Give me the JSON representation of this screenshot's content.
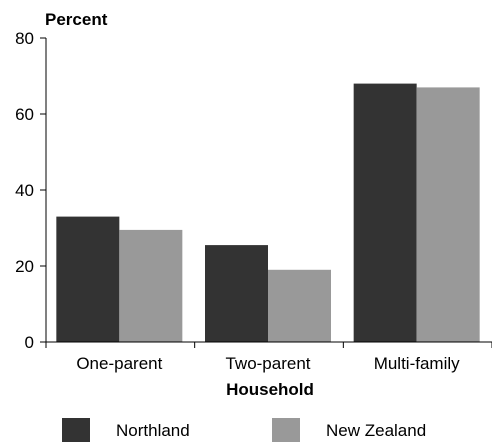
{
  "chart_data": {
    "type": "bar",
    "ylabel": "Percent",
    "xlabel": "Household",
    "ylim": [
      0,
      80
    ],
    "yticks": [
      0,
      20,
      40,
      60,
      80
    ],
    "categories": [
      "One-parent",
      "Two-parent",
      "Multi-family"
    ],
    "series": [
      {
        "name": "Northland",
        "color": "#333333",
        "values": [
          33,
          25.5,
          68
        ]
      },
      {
        "name": "New Zealand",
        "color": "#999999",
        "values": [
          29.5,
          19,
          67
        ]
      }
    ],
    "grid": false,
    "legend_position": "bottom"
  }
}
